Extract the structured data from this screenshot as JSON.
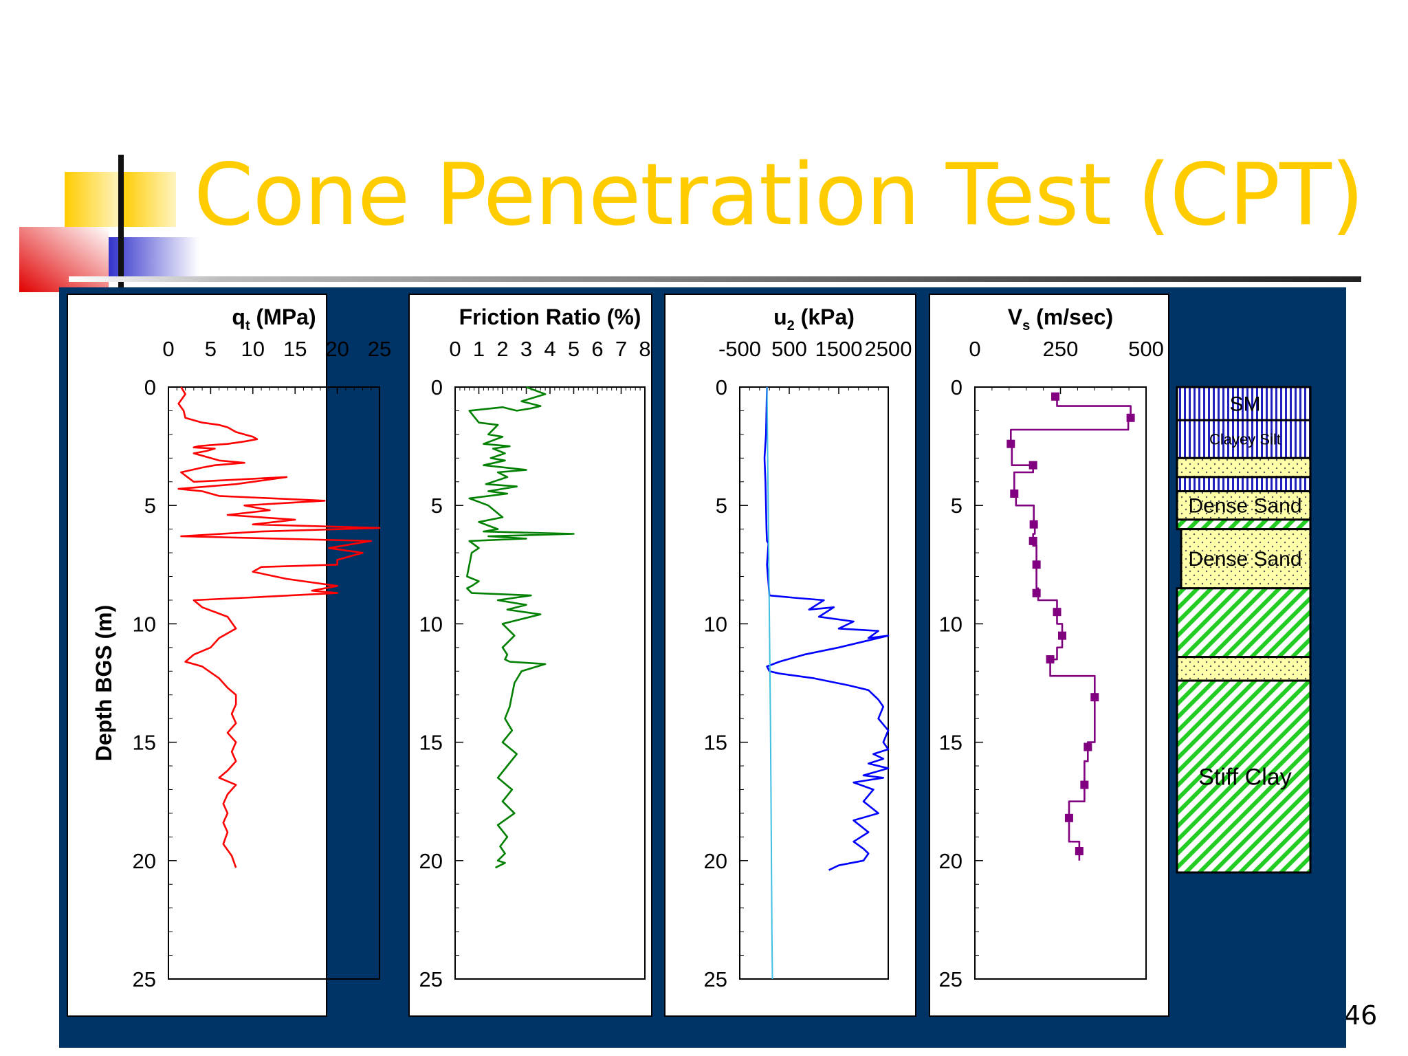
{
  "slide": {
    "title": "Cone Penetration Test (CPT)",
    "slide_number": "46",
    "colors": {
      "title": "#FFCC00",
      "panel_background": "#003366"
    }
  },
  "chart_data": [
    {
      "type": "line",
      "title_main": "q",
      "title_sub": "t",
      "title_rest": " (MPa)",
      "ylabel": "Depth BGS (m)",
      "xlim": [
        0,
        25
      ],
      "ylim": [
        0,
        25
      ],
      "y_inverted": true,
      "xticks": [
        "0",
        "5",
        "10",
        "15",
        "20",
        "25"
      ],
      "yticks": [
        "0",
        "5",
        "10",
        "15",
        "20",
        "25"
      ],
      "series": [
        {
          "color": "#FF0000",
          "x": [
            1.5,
            2,
            1.2,
            1.8,
            2,
            4,
            6,
            7,
            8,
            9,
            10,
            10.5,
            9,
            7,
            5,
            3.5,
            3,
            5.5,
            4.5,
            3,
            5,
            6,
            9,
            5.5,
            4,
            1.5,
            3,
            14,
            8,
            1.2,
            4,
            6,
            18.5,
            9,
            12,
            7,
            15,
            10,
            25,
            11,
            1.5,
            24,
            19,
            23,
            20,
            20,
            11,
            10,
            14,
            20,
            17,
            20,
            9,
            3,
            4,
            7,
            8,
            6,
            5,
            3,
            2,
            4,
            6,
            7,
            8,
            8,
            7.5,
            8,
            7,
            8,
            7.5,
            8,
            7,
            6,
            8,
            7,
            6.5,
            7,
            6.5,
            7,
            6.5,
            7.5,
            8
          ],
          "y": [
            0,
            0.3,
            0.7,
            1.0,
            1.3,
            1.5,
            1.6,
            1.7,
            1.9,
            2.0,
            2.1,
            2.2,
            2.3,
            2.4,
            2.45,
            2.5,
            2.55,
            2.6,
            2.7,
            2.8,
            3.0,
            3.1,
            3.2,
            3.3,
            3.4,
            3.6,
            4.0,
            3.8,
            4.1,
            4.3,
            4.4,
            4.6,
            4.8,
            5.0,
            5.2,
            5.4,
            5.6,
            5.8,
            5.95,
            6.1,
            6.3,
            6.5,
            6.8,
            7.0,
            7.3,
            7.5,
            7.6,
            7.8,
            8.1,
            8.4,
            8.6,
            8.7,
            8.9,
            9.0,
            9.3,
            9.7,
            10.2,
            10.6,
            11.0,
            11.3,
            11.6,
            11.8,
            12.3,
            12.7,
            13.0,
            13.4,
            13.8,
            14.2,
            14.6,
            15.0,
            15.4,
            15.8,
            16.2,
            16.5,
            16.8,
            17.2,
            17.6,
            18.0,
            18.4,
            18.8,
            19.3,
            19.8,
            20.3
          ]
        }
      ]
    },
    {
      "type": "line",
      "title_main": "Friction Ratio (%)",
      "xlim": [
        0,
        8
      ],
      "ylim": [
        0,
        25
      ],
      "y_inverted": true,
      "xticks": [
        "0",
        "1",
        "2",
        "3",
        "4",
        "5",
        "6",
        "7",
        "8"
      ],
      "yticks": [
        "0",
        "5",
        "10",
        "15",
        "20",
        "25"
      ],
      "series": [
        {
          "color": "#008000",
          "x": [
            3,
            3.8,
            2.8,
            3.6,
            3.2,
            2.6,
            2.0,
            0.6,
            1.0,
            1.8,
            1.4,
            2.0,
            1.2,
            2.3,
            1.6,
            2.1,
            1.5,
            2.1,
            1.2,
            3.0,
            1.8,
            2.2,
            1.3,
            2.6,
            1.4,
            2.2,
            0.6,
            1.4,
            2.0,
            1.0,
            1.8,
            1.2,
            5.0,
            1.4,
            3.0,
            0.6,
            1.0,
            0.7,
            0.6,
            0.5,
            1.0,
            0.7,
            0.5,
            0.7,
            3.2,
            1.8,
            3.0,
            2.2,
            3.6,
            2.0,
            2.5,
            2.0,
            2.2,
            2.1,
            2.3,
            3.8,
            2.8,
            2.5,
            2.4,
            2.3,
            2.1,
            2.4,
            2.0,
            2.6,
            2.2,
            1.8,
            2.4,
            2.0,
            2.5,
            1.8,
            2.2,
            1.9,
            2.1,
            1.8,
            2.1,
            1.7
          ],
          "y": [
            0,
            0.3,
            0.6,
            0.8,
            0.9,
            1.0,
            0.85,
            1.0,
            1.5,
            1.6,
            2.0,
            2.1,
            2.4,
            2.5,
            2.6,
            2.8,
            3.0,
            3.1,
            3.3,
            3.5,
            3.6,
            3.8,
            4.1,
            4.2,
            4.4,
            4.5,
            4.7,
            5.0,
            5.5,
            5.7,
            6.0,
            6.1,
            6.2,
            6.3,
            6.4,
            6.5,
            6.8,
            7.0,
            7.5,
            8.0,
            8.2,
            8.4,
            8.5,
            8.7,
            8.8,
            9.0,
            9.2,
            9.4,
            9.6,
            10.0,
            10.5,
            11.0,
            11.3,
            11.5,
            11.6,
            11.7,
            12.0,
            12.5,
            13.0,
            13.5,
            14.0,
            14.5,
            15.0,
            15.5,
            16.0,
            16.5,
            17.0,
            17.5,
            18.0,
            18.5,
            19.0,
            19.4,
            19.7,
            20.0,
            20.1,
            20.3
          ]
        }
      ]
    },
    {
      "type": "line",
      "title_main": "u",
      "title_sub": "2",
      "title_rest": " (kPa)",
      "xlim": [
        -500,
        2500
      ],
      "ylim": [
        0,
        25
      ],
      "y_inverted": true,
      "xticks": [
        "-500",
        "500",
        "1500",
        "2500"
      ],
      "yticks": [
        "0",
        "5",
        "10",
        "15",
        "20",
        "25"
      ],
      "series": [
        {
          "color": "#0000FF",
          "x": [
            50,
            40,
            30,
            0,
            20,
            30,
            40,
            50,
            80,
            50,
            100,
            600,
            1200,
            900,
            1400,
            1100,
            1800,
            1500,
            2300,
            2100,
            2500,
            1500,
            800,
            300,
            50,
            100,
            300,
            1000,
            1700,
            2100,
            2300,
            2400,
            2300,
            2500,
            2400,
            2500,
            2200,
            2400,
            2100,
            2500,
            2000,
            2400,
            1800,
            2200,
            2000,
            2300,
            1800,
            2100,
            1800,
            2000,
            2100,
            2000,
            1500,
            1300
          ],
          "y": [
            0,
            1,
            2,
            3,
            4,
            5,
            6,
            6.5,
            6.6,
            7.5,
            8.8,
            8.9,
            9.0,
            9.4,
            9.3,
            9.7,
            9.9,
            10.2,
            10.3,
            10.6,
            10.5,
            11.0,
            11.3,
            11.6,
            11.8,
            12.0,
            12.1,
            12.3,
            12.6,
            12.8,
            13.2,
            13.5,
            14.0,
            14.5,
            15.0,
            15.3,
            15.5,
            15.7,
            15.9,
            16.1,
            16.4,
            16.5,
            16.7,
            17.0,
            17.5,
            18.0,
            18.3,
            18.8,
            19.2,
            19.5,
            19.7,
            20.0,
            20.2,
            20.4
          ]
        },
        {
          "color": "#40C0E0",
          "x": [
            50,
            60,
            70,
            80,
            90,
            100,
            110,
            120,
            130,
            140,
            150,
            160
          ],
          "y": [
            0,
            2,
            4,
            6,
            8,
            10,
            12,
            14,
            17,
            20,
            23,
            25
          ]
        }
      ]
    },
    {
      "type": "line",
      "title_main": "V",
      "title_sub": "s",
      "title_rest": " (m/sec)",
      "xlim": [
        0,
        500
      ],
      "ylim": [
        0,
        25
      ],
      "y_inverted": true,
      "xticks": [
        "0",
        "250",
        "500"
      ],
      "yticks": [
        "0",
        "5",
        "10",
        "15",
        "20",
        "25"
      ],
      "series": [
        {
          "color": "#800080",
          "x": [
            235,
            240,
            240,
            455,
            455,
            448,
            448,
            105,
            105,
            108,
            108,
            170,
            170,
            115,
            115,
            120,
            120,
            172,
            172,
            175,
            175,
            170,
            170,
            180,
            180,
            185,
            185,
            240,
            240,
            255,
            255,
            240,
            240,
            220,
            220,
            350,
            350,
            330,
            330,
            320,
            320,
            275,
            275,
            305,
            305
          ],
          "y": [
            0.4,
            0.4,
            0.8,
            0.8,
            1.3,
            1.3,
            1.8,
            1.8,
            2.4,
            2.4,
            3.3,
            3.3,
            3.6,
            3.6,
            4.5,
            4.5,
            5.0,
            5.0,
            5.8,
            5.8,
            6.2,
            6.2,
            6.7,
            6.7,
            8.5,
            8.5,
            9.0,
            9.0,
            10.0,
            10.0,
            11.0,
            11.0,
            11.5,
            11.5,
            12.2,
            12.2,
            15.0,
            15.0,
            15.8,
            15.8,
            17.5,
            17.5,
            19.2,
            19.2,
            20.0
          ]
        }
      ],
      "markers": {
        "x": [
          235,
          455,
          105,
          170,
          115,
          172,
          170,
          180,
          180,
          240,
          255,
          220,
          350,
          330,
          320,
          275,
          305
        ],
        "y": [
          0.4,
          1.3,
          2.4,
          3.3,
          4.5,
          5.8,
          6.5,
          7.5,
          8.7,
          9.5,
          10.5,
          11.5,
          13.1,
          15.2,
          16.8,
          18.2,
          19.6
        ]
      }
    },
    {
      "type": "table",
      "legend_layers": [
        {
          "label": "SM",
          "pattern": "vertical-blue",
          "top": 0,
          "bottom": 1.4
        },
        {
          "label": "Clayey Silt",
          "pattern": "vertical-blue",
          "top": 1.4,
          "bottom": 3.0
        },
        {
          "label": "",
          "pattern": "dots-yellow",
          "top": 3.0,
          "bottom": 3.8
        },
        {
          "label": "",
          "pattern": "vertical-blue",
          "top": 3.8,
          "bottom": 4.4
        },
        {
          "label": "Dense Sand",
          "pattern": "dots-yellow",
          "top": 4.4,
          "bottom": 5.6
        },
        {
          "label": "",
          "pattern": "diagonal-green",
          "top": 5.6,
          "bottom": 6.0
        },
        {
          "label": "Dense Sand",
          "pattern": "dots-yellow",
          "top": 6.0,
          "bottom": 8.5
        },
        {
          "label": "",
          "pattern": "diagonal-green",
          "top": 8.5,
          "bottom": 11.4
        },
        {
          "label": "",
          "pattern": "dots-yellow",
          "top": 11.4,
          "bottom": 12.4
        },
        {
          "label": "Stiff Clay",
          "pattern": "diagonal-green",
          "top": 12.4,
          "bottom": 20.5
        }
      ]
    }
  ]
}
